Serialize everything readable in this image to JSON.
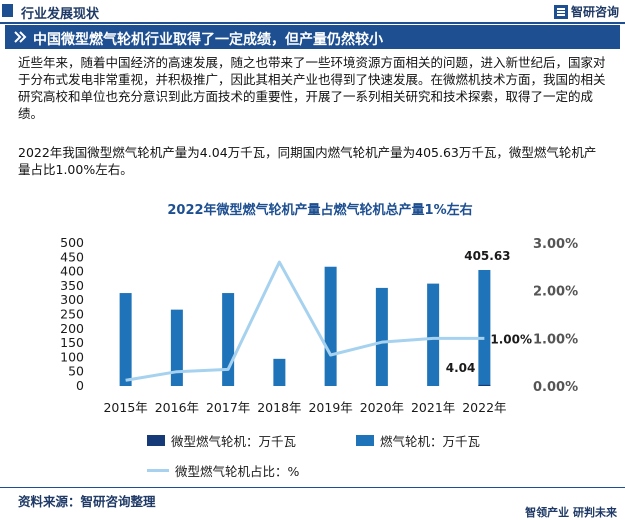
{
  "header": {
    "section_title": "行业发展现状",
    "logo_text": "智研咨询"
  },
  "banner": {
    "text": "中国微型燃气轮机行业取得了一定成绩，但产量仍然较小"
  },
  "paragraphs": [
    "近些年来，随着中国经济的高速发展，随之也带来了一些环境资源方面相关的问题，进入新世纪后，国家对于分布式发电非常重视，并积极推广，因此其相关产业也得到了快速发展。在微燃机技术方面，我国的相关研究高校和单位也充分意识到此方面技术的重要性，开展了一系列相关研究和技术探索，取得了一定的成绩。",
    "2022年我国微型燃气轮机产量为4.04万千瓦，同期国内燃气轮机产量为405.63万千瓦，微型燃气轮机产量占比1.00%左右。"
  ],
  "chart_data": {
    "type": "bar",
    "title": "2022年微型燃气轮机产量占燃气轮机总产量1%左右",
    "categories": [
      "2015年",
      "2016年",
      "2017年",
      "2018年",
      "2019年",
      "2020年",
      "2021年",
      "2022年"
    ],
    "ylim": [
      0,
      500
    ],
    "yticks": [
      "0",
      "50",
      "100",
      "150",
      "200",
      "250",
      "300",
      "350",
      "400",
      "450",
      "500"
    ],
    "y2lim": [
      0,
      3.0
    ],
    "y2ticks": [
      "0.00%",
      "1.00%",
      "2.00%",
      "3.00%"
    ],
    "series": [
      {
        "name": "微型燃气轮机：万千瓦",
        "kind": "bar",
        "color": "#163a78",
        "values": [
          null,
          null,
          null,
          null,
          null,
          null,
          null,
          4.04
        ]
      },
      {
        "name": "燃气轮机：万千瓦",
        "kind": "bar",
        "color": "#1f74b9",
        "values": [
          325,
          267,
          325,
          95,
          417,
          343,
          358,
          405.63
        ]
      },
      {
        "name": "微型燃气轮机占比：%",
        "kind": "line",
        "axis": "right",
        "color": "#a6d2ef",
        "values": [
          0.12,
          0.3,
          0.35,
          2.6,
          0.65,
          0.92,
          1.0,
          1.0
        ]
      }
    ],
    "data_labels": {
      "bar_2022": "405.63",
      "micro_2022": "4.04",
      "ratio_2022": "1.00%"
    },
    "legend_position": "bottom",
    "grid": false
  },
  "footer": {
    "source": "资料来源：智研咨询整理",
    "slogan": "智领产业  研判未来"
  }
}
